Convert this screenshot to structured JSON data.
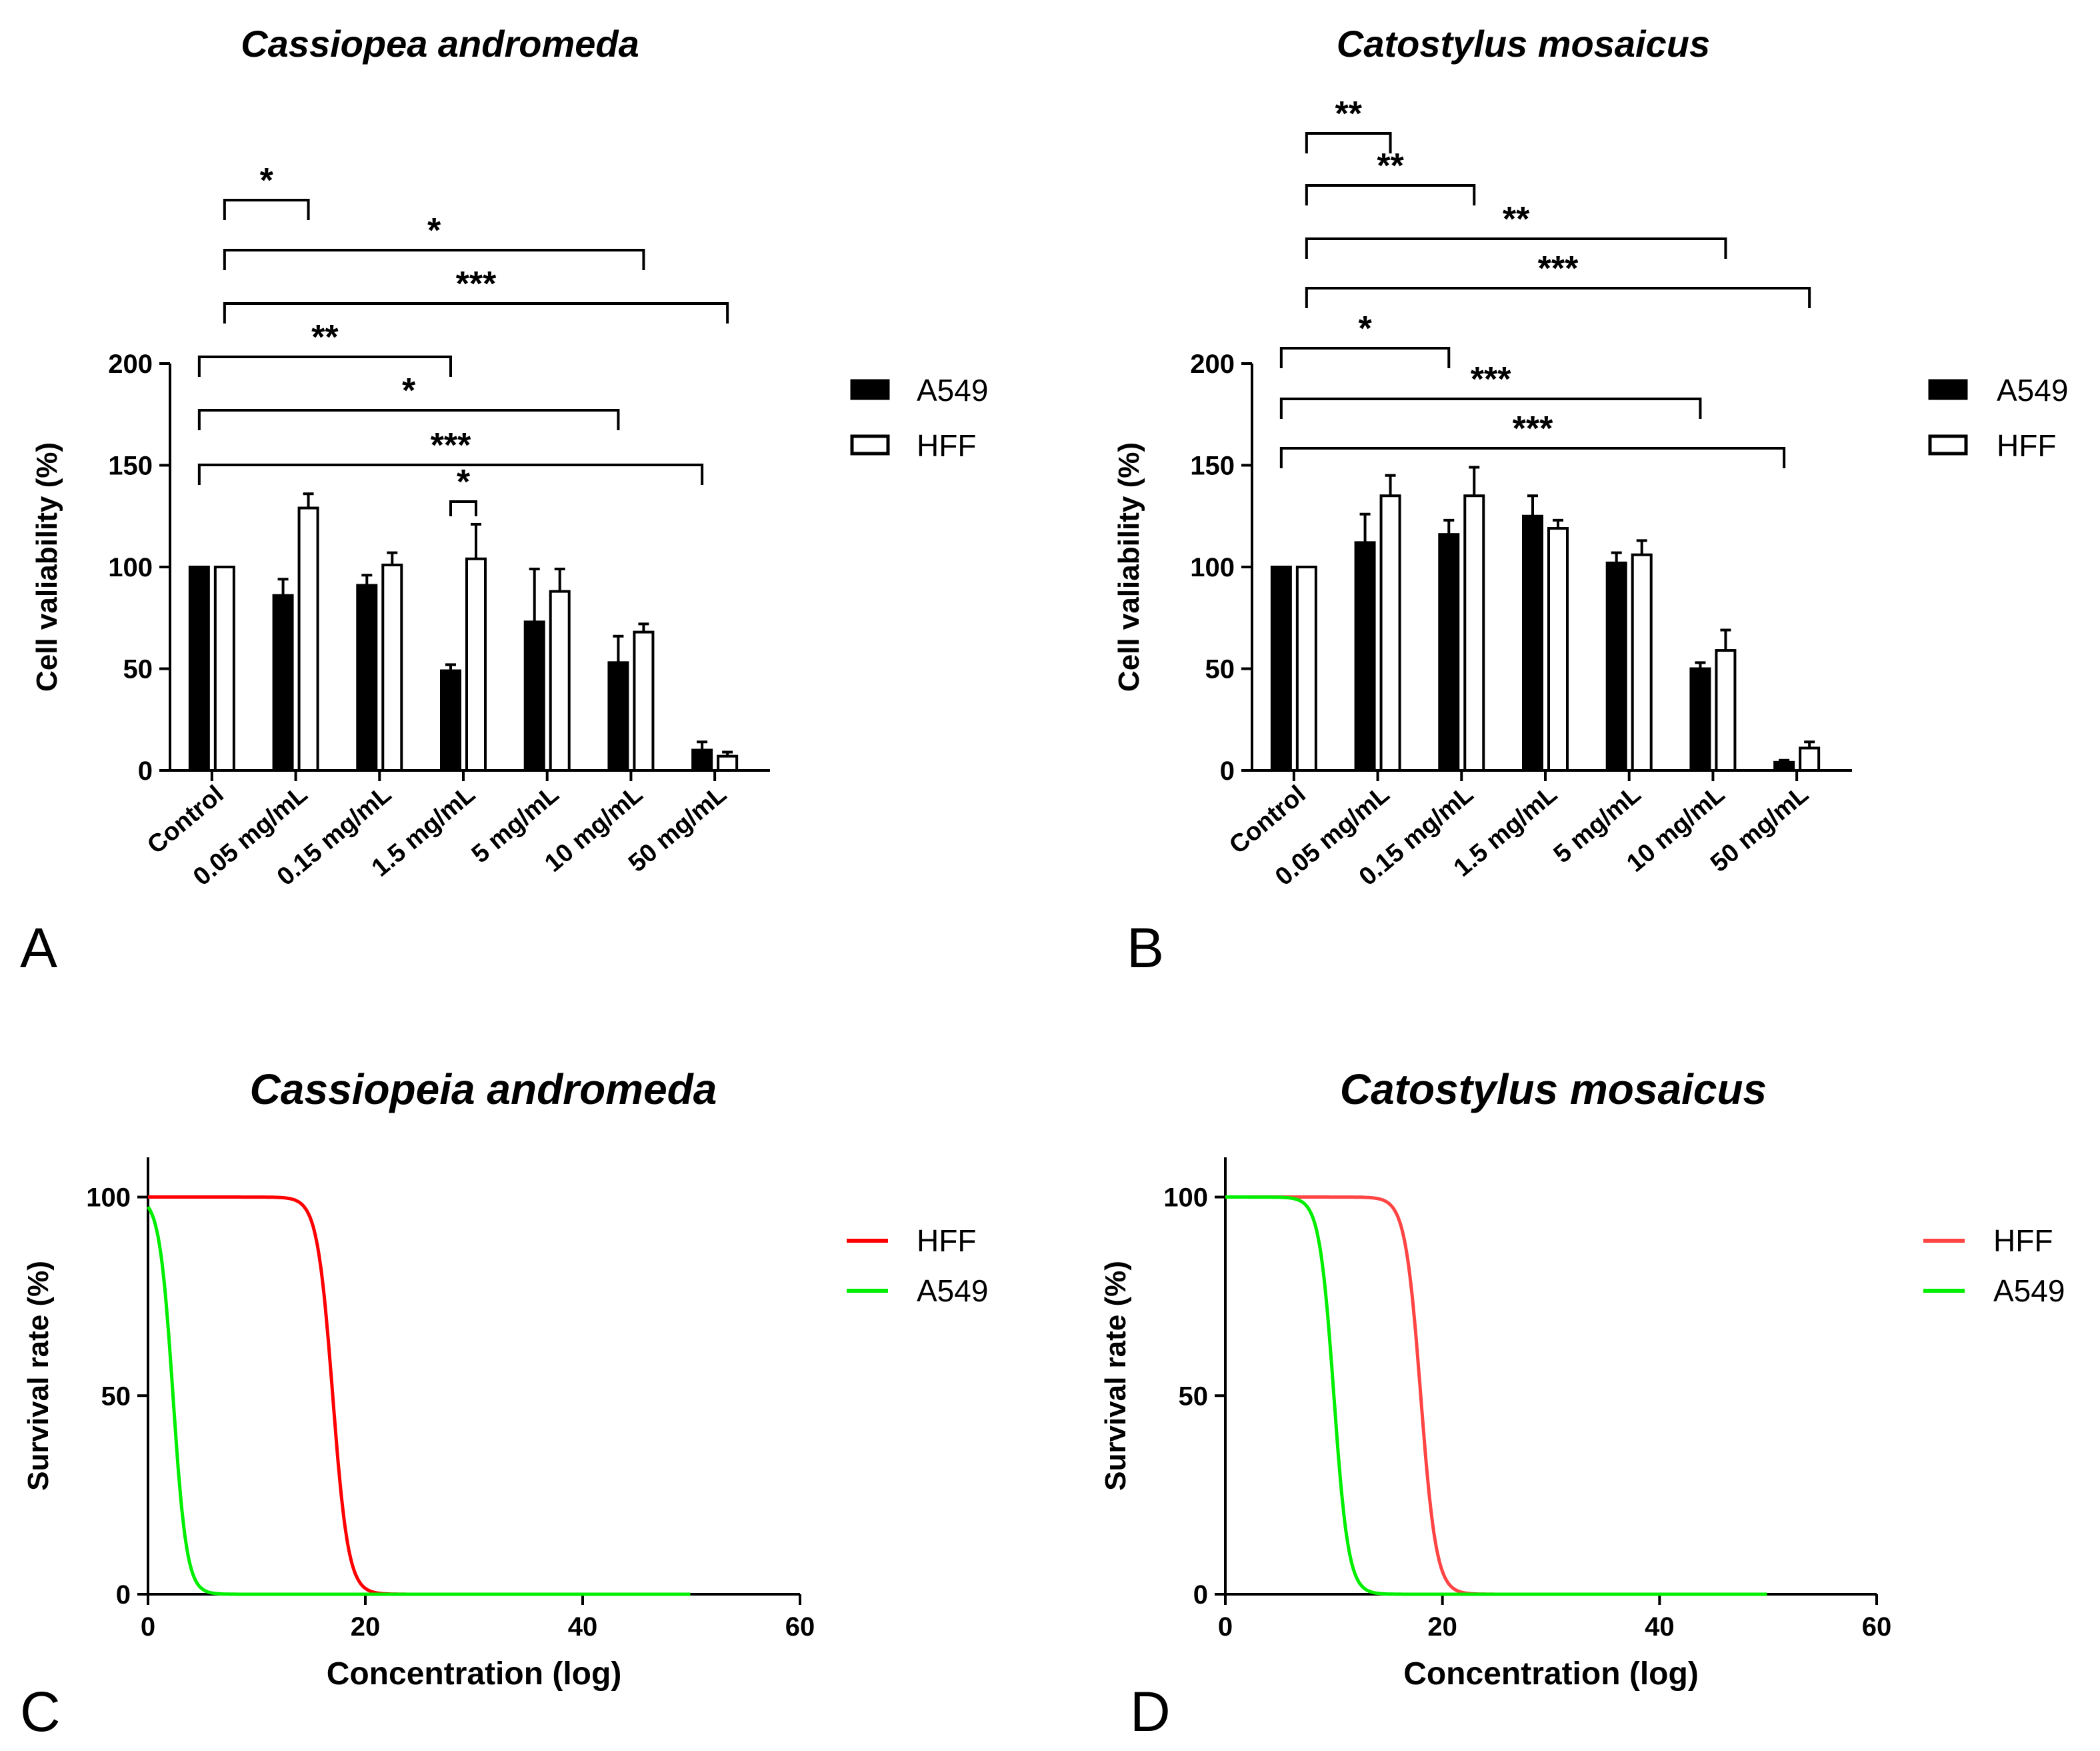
{
  "chart_data": [
    {
      "panel": "A",
      "type": "bar",
      "title": "Cassiopea andromeda",
      "xlabel": "",
      "ylabel": "Cell valiability (%)",
      "ylim": [
        0,
        200
      ],
      "yticks": [
        0,
        50,
        100,
        150,
        200
      ],
      "categories": [
        "Control",
        "0.05 mg/mL",
        "0.15 mg/mL",
        "1.5 mg/mL",
        "5 mg/mL",
        "10 mg/mL",
        "50 mg/mL"
      ],
      "series": [
        {
          "name": "A549",
          "fill": "#000000",
          "values": [
            100,
            86,
            91,
            49,
            73,
            53,
            10
          ],
          "errors": [
            0,
            8,
            5,
            3,
            26,
            13,
            4
          ]
        },
        {
          "name": "HFF",
          "fill": "#ffffff",
          "values": [
            100,
            129,
            101,
            104,
            88,
            68,
            7
          ],
          "errors": [
            0,
            7,
            6,
            17,
            11,
            4,
            2
          ]
        }
      ],
      "legend": [
        "A549",
        "HFF"
      ],
      "significance": [
        {
          "group": "HFF",
          "from": 0,
          "to": 1,
          "label": "*"
        },
        {
          "group": "HFF",
          "from": 0,
          "to": 5,
          "label": "*"
        },
        {
          "group": "HFF",
          "from": 0,
          "to": 6,
          "label": "***"
        },
        {
          "group": "A549",
          "from": 0,
          "to": 3,
          "label": "**"
        },
        {
          "group": "A549",
          "from": 0,
          "to": 5,
          "label": "*"
        },
        {
          "group": "A549",
          "from": 0,
          "to": 6,
          "label": "***"
        },
        {
          "group": "pair",
          "from": 3,
          "to": 3,
          "label": "*"
        }
      ]
    },
    {
      "panel": "B",
      "type": "bar",
      "title": "Catostylus mosaicus",
      "xlabel": "",
      "ylabel": "Cell valiability (%)",
      "ylim": [
        0,
        200
      ],
      "yticks": [
        0,
        50,
        100,
        150,
        200
      ],
      "categories": [
        "Control",
        "0.05 mg/mL",
        "0.15 mg/mL",
        "1.5 mg/mL",
        "5 mg/mL",
        "10 mg/mL",
        "50 mg/mL"
      ],
      "series": [
        {
          "name": "A549",
          "fill": "#000000",
          "values": [
            100,
            112,
            116,
            125,
            102,
            50,
            4
          ],
          "errors": [
            0,
            14,
            7,
            10,
            5,
            3,
            1
          ]
        },
        {
          "name": "HFF",
          "fill": "#ffffff",
          "values": [
            100,
            135,
            135,
            119,
            106,
            59,
            11
          ],
          "errors": [
            0,
            10,
            14,
            4,
            7,
            10,
            3
          ]
        }
      ],
      "legend": [
        "A549",
        "HFF"
      ],
      "significance": [
        {
          "group": "HFF",
          "from": 0,
          "to": 1,
          "label": "**"
        },
        {
          "group": "HFF",
          "from": 0,
          "to": 2,
          "label": "**"
        },
        {
          "group": "HFF",
          "from": 0,
          "to": 5,
          "label": "**"
        },
        {
          "group": "HFF",
          "from": 0,
          "to": 6,
          "label": "***"
        },
        {
          "group": "A549",
          "from": 0,
          "to": 2,
          "label": "*"
        },
        {
          "group": "A549",
          "from": 0,
          "to": 5,
          "label": "***"
        },
        {
          "group": "A549",
          "from": 0,
          "to": 6,
          "label": "***"
        }
      ]
    },
    {
      "panel": "C",
      "type": "line",
      "title": "Cassiopeia andromeda",
      "xlabel": "Concentration (log)",
      "ylabel": "Survival rate (%)",
      "xlim": [
        0,
        60
      ],
      "ylim": [
        0,
        110
      ],
      "xticks": [
        0,
        20,
        40,
        60
      ],
      "yticks": [
        0,
        50,
        100
      ],
      "x_end": 50,
      "series": [
        {
          "name": "HFF",
          "color": "#ff0000",
          "midpoint": 17,
          "hill": 1.4
        },
        {
          "name": "A549",
          "color": "#00ee00",
          "midpoint": 2.3,
          "hill": 1.6
        }
      ],
      "legend": [
        "HFF",
        "A549"
      ]
    },
    {
      "panel": "D",
      "type": "line",
      "title": "Catostylus mosaicus",
      "xlabel": "Concentration (log)",
      "ylabel": "Survival rate (%)",
      "xlim": [
        0,
        60
      ],
      "ylim": [
        0,
        110
      ],
      "xticks": [
        0,
        20,
        40,
        60
      ],
      "yticks": [
        0,
        50,
        100
      ],
      "x_end": 50,
      "series": [
        {
          "name": "HFF",
          "color": "#ff4444",
          "midpoint": 18,
          "hill": 1.4
        },
        {
          "name": "A549",
          "color": "#00ee00",
          "midpoint": 10,
          "hill": 1.5
        }
      ],
      "legend": [
        "HFF",
        "A549"
      ]
    }
  ]
}
